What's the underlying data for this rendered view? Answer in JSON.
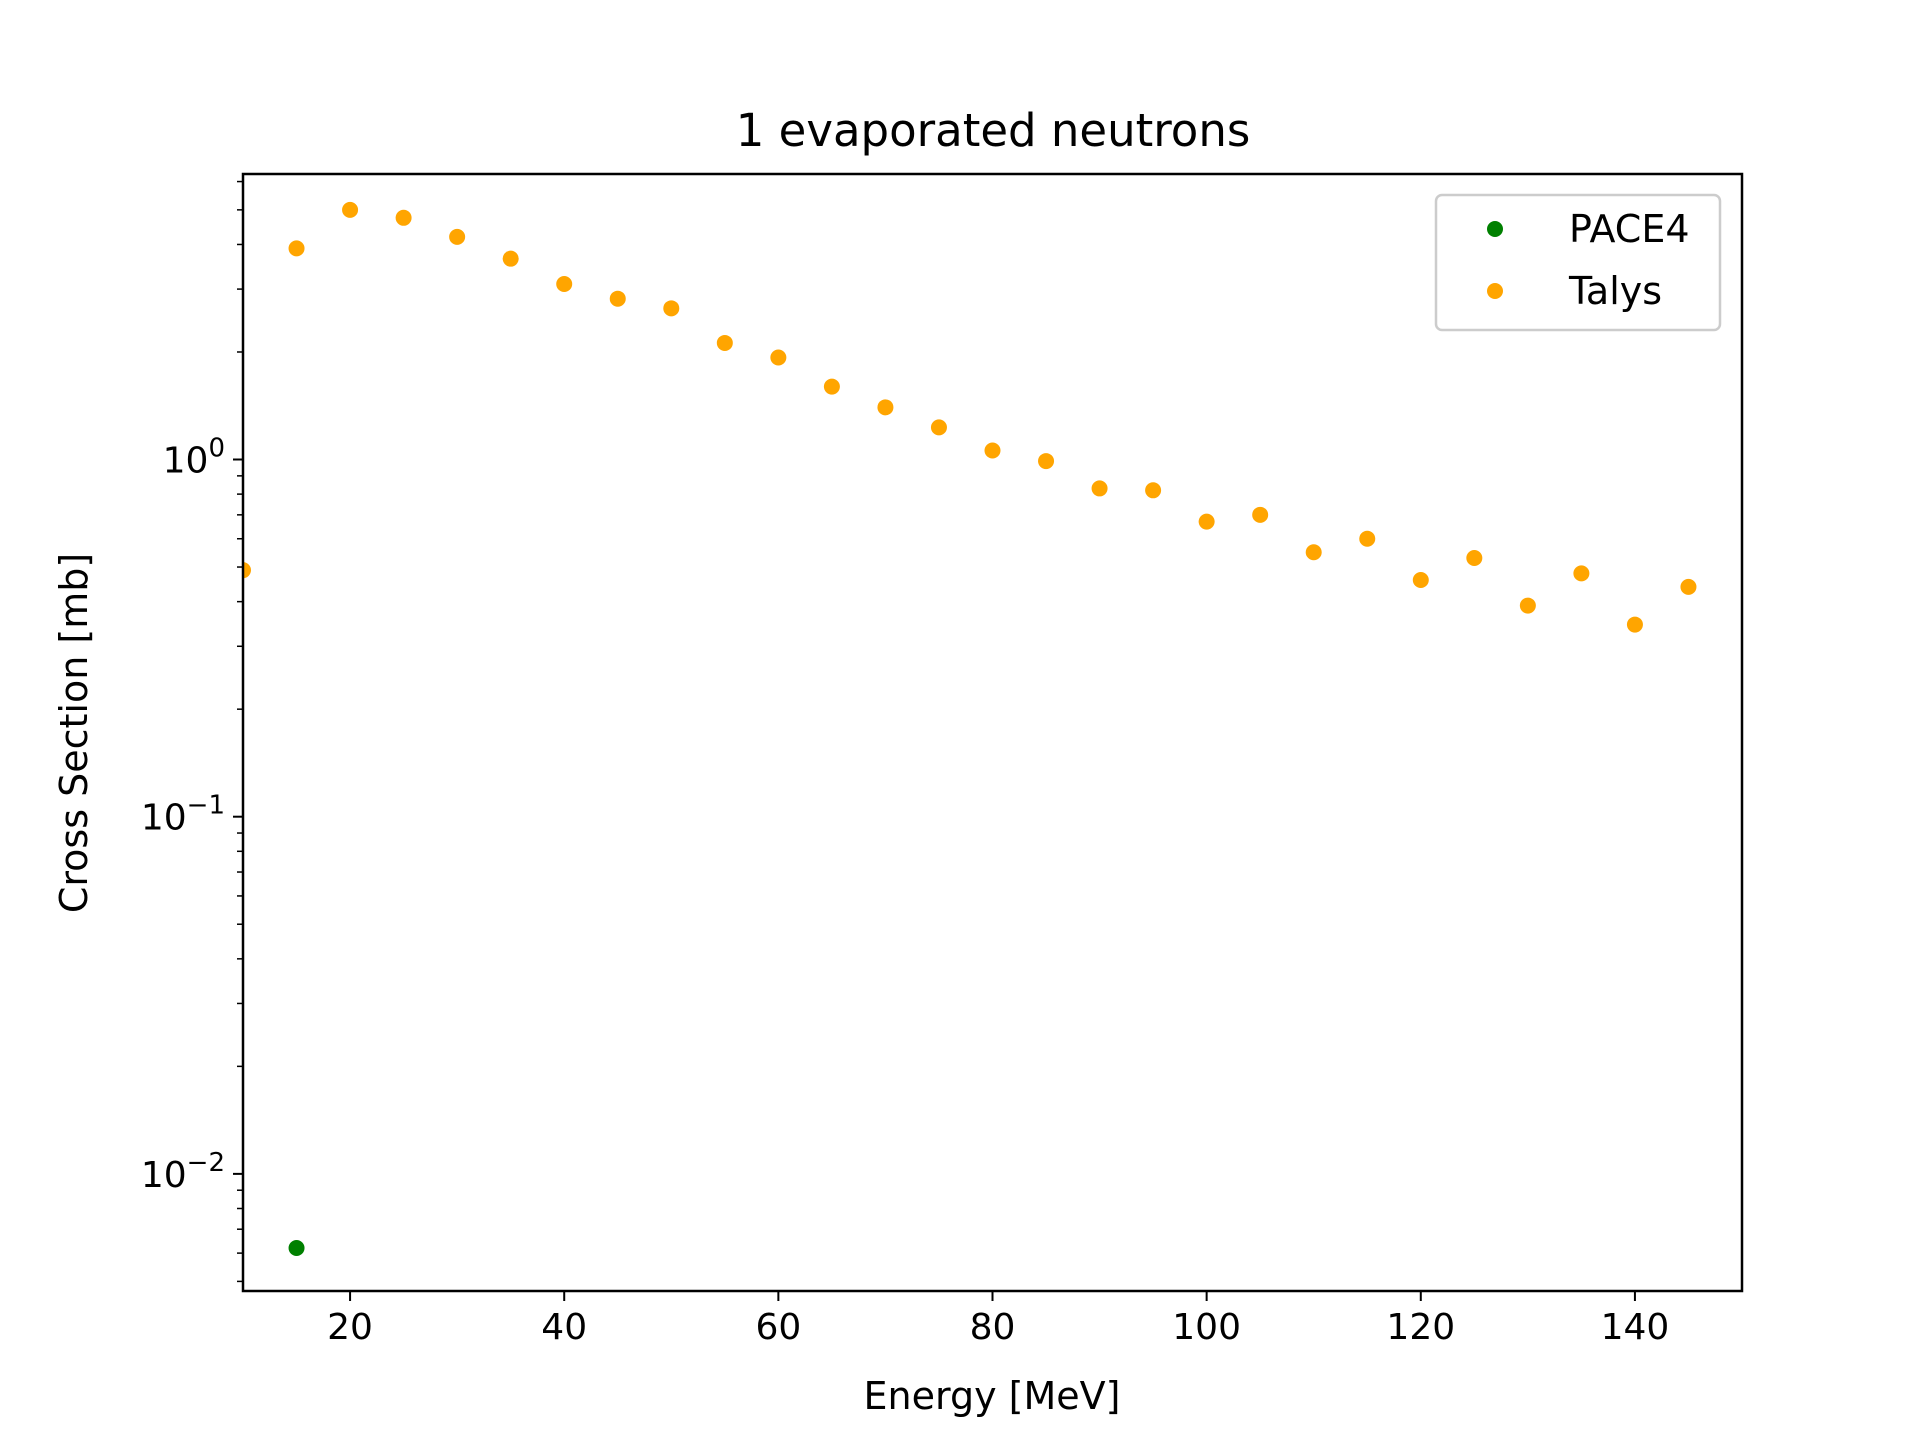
{
  "chart_data": {
    "type": "scatter",
    "title": "1 evaporated neutrons",
    "xlabel": "Energy [MeV]",
    "ylabel": "Cross Section [mb]",
    "xlim": [
      10,
      150
    ],
    "ylim": [
      0.0047,
      6.3
    ],
    "yscale": "log",
    "grid": false,
    "legend_position": "top-right",
    "x_ticks": [
      {
        "value": 20,
        "label": "20"
      },
      {
        "value": 40,
        "label": "40"
      },
      {
        "value": 60,
        "label": "60"
      },
      {
        "value": 80,
        "label": "80"
      },
      {
        "value": 100,
        "label": "100"
      },
      {
        "value": 120,
        "label": "120"
      },
      {
        "value": 140,
        "label": "140"
      }
    ],
    "y_ticks": [
      {
        "value": 1,
        "base": "10",
        "exp": "0"
      },
      {
        "value": 0.1,
        "base": "10",
        "exp": "−1"
      },
      {
        "value": 0.01,
        "base": "10",
        "exp": "−2"
      }
    ],
    "series": [
      {
        "name": "PACE4",
        "color": "#008000",
        "points": [
          [
            15,
            0.0062
          ]
        ]
      },
      {
        "name": "Talys",
        "color": "#ffa500",
        "points": [
          [
            10,
            0.49
          ],
          [
            15,
            3.9
          ],
          [
            20,
            5.0
          ],
          [
            25,
            4.75
          ],
          [
            30,
            4.2
          ],
          [
            35,
            3.65
          ],
          [
            40,
            3.1
          ],
          [
            45,
            2.82
          ],
          [
            50,
            2.65
          ],
          [
            55,
            2.12
          ],
          [
            60,
            1.93
          ],
          [
            65,
            1.6
          ],
          [
            70,
            1.4
          ],
          [
            75,
            1.23
          ],
          [
            80,
            1.06
          ],
          [
            85,
            0.99
          ],
          [
            90,
            0.83
          ],
          [
            95,
            0.82
          ],
          [
            100,
            0.67
          ],
          [
            105,
            0.7
          ],
          [
            110,
            0.55
          ],
          [
            115,
            0.6
          ],
          [
            120,
            0.46
          ],
          [
            125,
            0.53
          ],
          [
            130,
            0.39
          ],
          [
            135,
            0.48
          ],
          [
            140,
            0.345
          ],
          [
            145,
            0.44
          ]
        ]
      }
    ]
  }
}
